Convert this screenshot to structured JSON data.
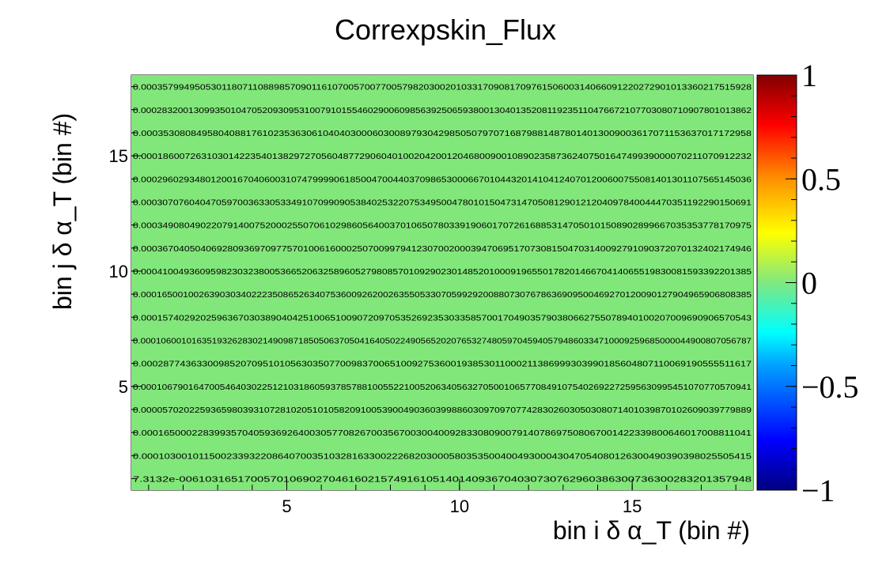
{
  "title": "Correxpskin_Flux",
  "chart_data": {
    "type": "heatmap",
    "title": "Correxpskin_Flux",
    "xlabel": "bin i δ α_T (bin #)",
    "ylabel": "bin j δ α_T (bin #)",
    "x_bins": [
      1,
      2,
      3,
      4,
      5,
      6,
      7,
      8,
      9,
      10,
      11,
      12,
      13,
      14,
      15,
      16,
      17,
      18
    ],
    "y_bins": [
      1,
      2,
      3,
      4,
      5,
      6,
      7,
      8,
      9,
      10,
      11,
      12,
      13,
      14,
      15,
      16,
      17,
      18
    ],
    "xlim": [
      0.5,
      18.5
    ],
    "ylim": [
      0.5,
      18.5
    ],
    "x_ticks": [
      "5",
      "10",
      "15"
    ],
    "y_ticks": [
      "5",
      "10",
      "15"
    ],
    "zlim": [
      -1,
      1
    ],
    "z_ticks": [
      "−1",
      "−0.5",
      "0",
      "0.5",
      "1"
    ],
    "cell_fill": "#82e77a",
    "row_labels": [
      "7.3132e-0061031651700570106902704616021574916105140140936704030730762960386300736300283201357948",
      "0.00010300101150023393220864070035103281633002226820300058035350040049300043047054080126300490390398025505415",
      "0.0001650002283993570405936926400305770826700356700300400928330809007914078697508067001422339800646017008811041",
      "0.000057020225936598039310728102051010582091005390049036039988603097097077428302603050308071401039870102609039779889",
      "0.00010679016470054640302251210318605937857881005522100520634056327050010657708491075402692272595630995451070770570941",
      "0.000287743633009852070951010563035077009837006510092753600193853011000211386999303990185604807110069190555511617",
      "0.000106001016351932628302149098718505063705041640502249056520207653274805970459405794860334710009259685000044900807056787",
      "0.00015740292025963670303890404251006510090720970535269235303358570017049035790380662755078940100207009690906570543",
      "0.00016500100263903034022235086526340753600926200263550533070599292008807307678636909500469270120090127904965906808385",
      "0.000410049360959823032380053665206325896052798085701092902301485201000919655017820146670414065519830081593392201385",
      "0.00036704050406928093697097757010061600025070099794123070020003947069517073081504703140092791090372070132402174946",
      "0.00034908049022079140075200025507061029860564003701065078033919060170726168853147050101508902899667035353778170975",
      "0.000307076040470597003633053349107099090538402532207534950047801015047314705081290121204097840044470351192290150691",
      "0.000296029348012001670406003107479999061850047004403709865300066701044320141041240701200600755081401301107565145036",
      "0.0001860072631030142235401382972705604877290604010020420012046800900108902358736240750164749939000070211070912232",
      "0.000353080849580408817610235363061040403000603008979304298505079707168798814878014013009003617071153637017172958",
      "0.00028320013099350104705209309531007910155460290060985639250659380013040135208119235110476672107703080710907801013862",
      "0.000357994950530118071108898570901161070057007700579820300201033170908170976150600314066091220272901013360217515928"
    ]
  }
}
